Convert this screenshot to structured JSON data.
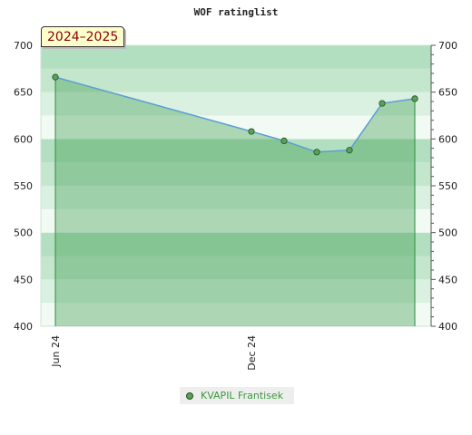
{
  "chart_data": {
    "type": "area",
    "title": "WOF ratinglist",
    "season_label": "2024–2025",
    "xlabel": "",
    "ylabel": "",
    "ylim": [
      400,
      700
    ],
    "y_ticks": [
      400,
      450,
      500,
      550,
      600,
      650,
      700
    ],
    "x_ticks": [
      "Jun 24",
      "Dec 24"
    ],
    "legend_position": "bottom-center",
    "grid": true,
    "series": [
      {
        "name": "KVAPIL Frantisek",
        "color": "#5a9fd4",
        "marker_color": "#5aa05a",
        "points": [
          {
            "x": "2024-06",
            "y": 666
          },
          {
            "x": "2024-12",
            "y": 608
          },
          {
            "x": "2025-01",
            "y": 598
          },
          {
            "x": "2025-02",
            "y": 586
          },
          {
            "x": "2025-03",
            "y": 588
          },
          {
            "x": "2025-04",
            "y": 638
          },
          {
            "x": "2025-05",
            "y": 643
          }
        ]
      }
    ]
  }
}
